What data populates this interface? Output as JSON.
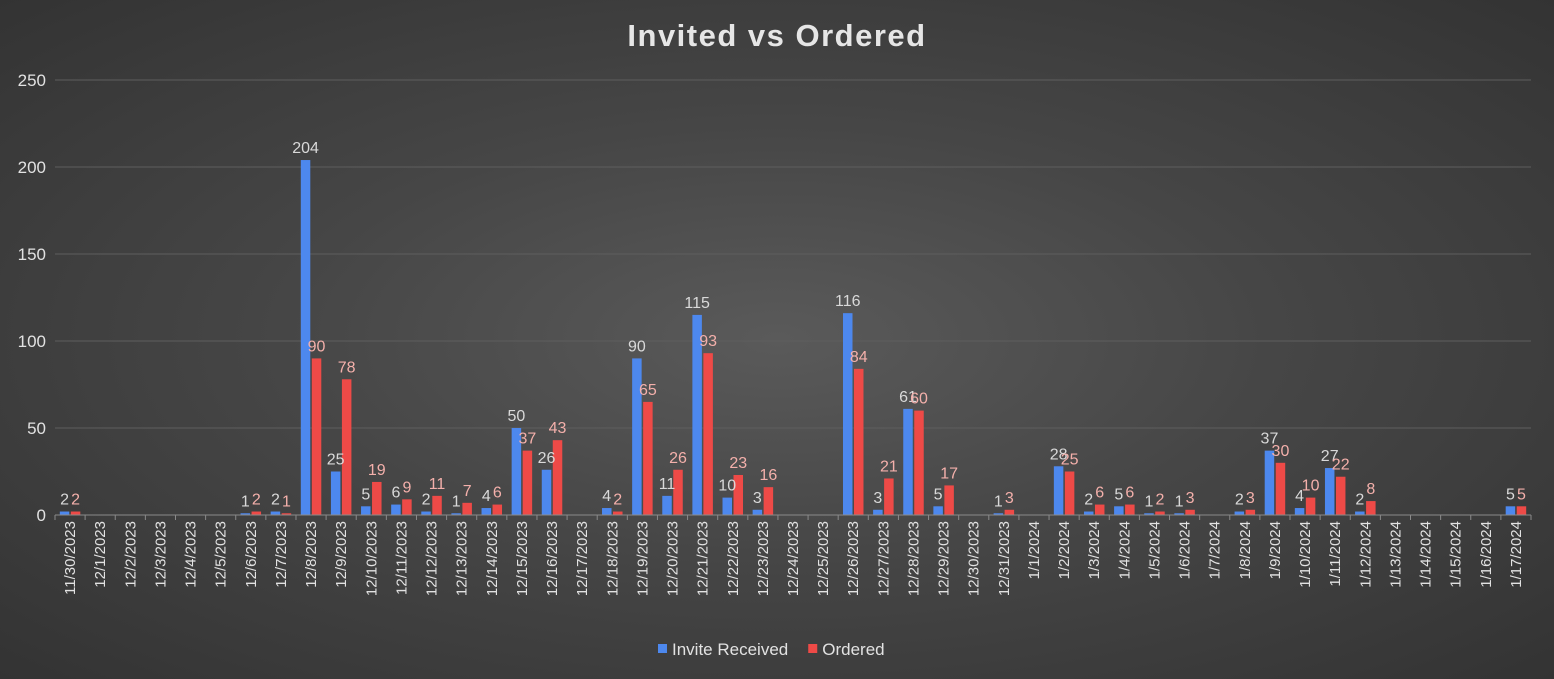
{
  "chart_data": {
    "type": "bar",
    "title": "Invited vs Ordered",
    "xlabel": "",
    "ylabel": "",
    "ylim": [
      0,
      250
    ],
    "yticks": [
      0,
      50,
      100,
      150,
      200,
      250
    ],
    "grid": true,
    "legend_position": "bottom",
    "categories": [
      "11/30/2023",
      "12/1/2023",
      "12/2/2023",
      "12/3/2023",
      "12/4/2023",
      "12/5/2023",
      "12/6/2023",
      "12/7/2023",
      "12/8/2023",
      "12/9/2023",
      "12/10/2023",
      "12/11/2023",
      "12/12/2023",
      "12/13/2023",
      "12/14/2023",
      "12/15/2023",
      "12/16/2023",
      "12/17/2023",
      "12/18/2023",
      "12/19/2023",
      "12/20/2023",
      "12/21/2023",
      "12/22/2023",
      "12/23/2023",
      "12/24/2023",
      "12/25/2023",
      "12/26/2023",
      "12/27/2023",
      "12/28/2023",
      "12/29/2023",
      "12/30/2023",
      "12/31/2023",
      "1/1/2024",
      "1/2/2024",
      "1/3/2024",
      "1/4/2024",
      "1/5/2024",
      "1/6/2024",
      "1/7/2024",
      "1/8/2024",
      "1/9/2024",
      "1/10/2024",
      "1/11/2024",
      "1/12/2024",
      "1/13/2024",
      "1/14/2024",
      "1/15/2024",
      "1/16/2024",
      "1/17/2024"
    ],
    "series": [
      {
        "name": "Invite Received",
        "color": "#4d88ee",
        "label_color": "#d9d9d9",
        "values": [
          2,
          null,
          null,
          null,
          null,
          null,
          1,
          2,
          204,
          25,
          5,
          6,
          2,
          1,
          4,
          50,
          26,
          null,
          4,
          90,
          11,
          115,
          10,
          3,
          null,
          null,
          116,
          3,
          61,
          5,
          null,
          1,
          null,
          28,
          2,
          5,
          1,
          1,
          null,
          2,
          37,
          4,
          27,
          2,
          null,
          null,
          null,
          null,
          5
        ]
      },
      {
        "name": "Ordered",
        "color": "#ee4a47",
        "label_color": "#f4b0ab",
        "values": [
          2,
          null,
          null,
          null,
          null,
          null,
          2,
          1,
          90,
          78,
          19,
          9,
          11,
          7,
          6,
          37,
          43,
          null,
          2,
          65,
          26,
          93,
          23,
          16,
          null,
          null,
          84,
          21,
          60,
          17,
          null,
          3,
          null,
          25,
          6,
          6,
          2,
          3,
          null,
          3,
          30,
          10,
          22,
          8,
          null,
          null,
          null,
          null,
          5
        ]
      }
    ]
  },
  "colors": {
    "title": "#e6e6e6",
    "axis_text": "#e2e2e2",
    "gridline": "#5e5e5e",
    "axis_line": "#8a8a8a"
  }
}
